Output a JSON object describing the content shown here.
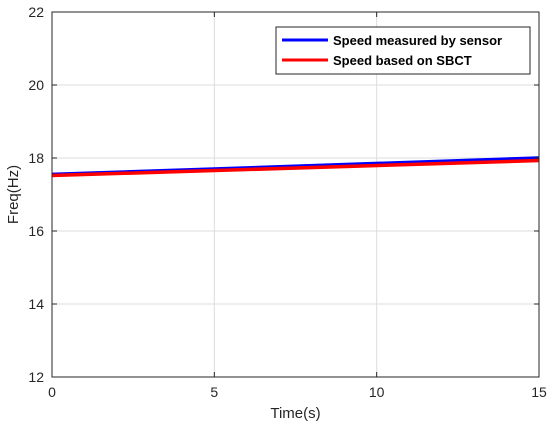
{
  "chart_data": {
    "type": "line",
    "xlabel": "Time(s)",
    "ylabel": "Freq(Hz)",
    "xlim": [
      0,
      15
    ],
    "ylim": [
      12,
      22
    ],
    "xticks": [
      0,
      5,
      10,
      15
    ],
    "yticks": [
      12,
      14,
      16,
      18,
      20,
      22
    ],
    "grid": true,
    "legend_position": "top-right",
    "series": [
      {
        "name": "Speed measured by sensor",
        "color": "#0000ff",
        "x": [
          0,
          15
        ],
        "y": [
          17.55,
          18.0
        ]
      },
      {
        "name": "Speed based on SBCT",
        "color": "#ff0000",
        "x": [
          0,
          15
        ],
        "y": [
          17.52,
          17.93
        ]
      }
    ]
  }
}
